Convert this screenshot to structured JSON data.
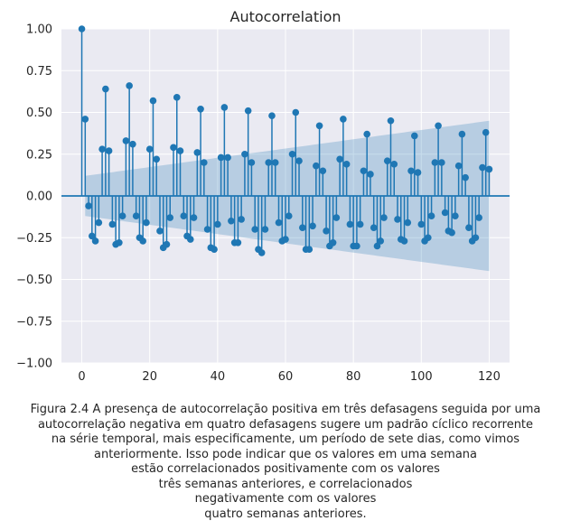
{
  "chart_data": {
    "type": "stem",
    "title": "Autocorrelation",
    "xlabel": "",
    "ylabel": "",
    "xlim": [
      -6,
      126
    ],
    "ylim": [
      -1.0,
      1.0
    ],
    "xticks": [
      0,
      20,
      40,
      60,
      80,
      100,
      120
    ],
    "yticks": [
      -1.0,
      -0.75,
      -0.5,
      -0.25,
      0.0,
      0.25,
      0.5,
      0.75,
      1.0
    ],
    "xtick_labels": [
      "0",
      "20",
      "40",
      "60",
      "80",
      "100",
      "120"
    ],
    "ytick_labels": [
      "−1.00",
      "−0.75",
      "−0.50",
      "−0.25",
      "0.00",
      "0.25",
      "0.50",
      "0.75",
      "1.00"
    ],
    "grid": true,
    "confidence_band": {
      "x": [
        1,
        120
      ],
      "upper": [
        0.12,
        0.45
      ],
      "lower": [
        -0.12,
        -0.45
      ]
    },
    "lags": [
      0,
      1,
      2,
      3,
      4,
      5,
      6,
      7,
      8,
      9,
      10,
      11,
      12,
      13,
      14,
      15,
      16,
      17,
      18,
      19,
      20,
      21,
      22,
      23,
      24,
      25,
      26,
      27,
      28,
      29,
      30,
      31,
      32,
      33,
      34,
      35,
      36,
      37,
      38,
      39,
      40,
      41,
      42,
      43,
      44,
      45,
      46,
      47,
      48,
      49,
      50,
      51,
      52,
      53,
      54,
      55,
      56,
      57,
      58,
      59,
      60,
      61,
      62,
      63,
      64,
      65,
      66,
      67,
      68,
      69,
      70,
      71,
      72,
      73,
      74,
      75,
      76,
      77,
      78,
      79,
      80,
      81,
      82,
      83,
      84,
      85,
      86,
      87,
      88,
      89,
      90,
      91,
      92,
      93,
      94,
      95,
      96,
      97,
      98,
      99,
      100,
      101,
      102,
      103,
      104,
      105,
      106,
      107,
      108,
      109,
      110,
      111,
      112,
      113,
      114,
      115,
      116,
      117,
      118,
      119,
      120
    ],
    "values": [
      1.0,
      0.46,
      -0.06,
      -0.24,
      -0.27,
      -0.16,
      0.28,
      0.64,
      0.27,
      -0.17,
      -0.29,
      -0.28,
      -0.12,
      0.33,
      0.66,
      0.31,
      -0.12,
      -0.25,
      -0.27,
      -0.16,
      0.28,
      0.57,
      0.22,
      -0.21,
      -0.31,
      -0.29,
      -0.13,
      0.29,
      0.59,
      0.27,
      -0.12,
      -0.24,
      -0.26,
      -0.13,
      0.26,
      0.52,
      0.2,
      -0.2,
      -0.31,
      -0.32,
      -0.17,
      0.23,
      0.53,
      0.23,
      -0.15,
      -0.28,
      -0.28,
      -0.14,
      0.25,
      0.51,
      0.2,
      -0.2,
      -0.32,
      -0.34,
      -0.2,
      0.2,
      0.48,
      0.2,
      -0.16,
      -0.27,
      -0.26,
      -0.12,
      0.25,
      0.5,
      0.21,
      -0.19,
      -0.32,
      -0.32,
      -0.18,
      0.18,
      0.42,
      0.15,
      -0.21,
      -0.3,
      -0.28,
      -0.13,
      0.22,
      0.46,
      0.19,
      -0.17,
      -0.3,
      -0.3,
      -0.17,
      0.15,
      0.37,
      0.13,
      -0.19,
      -0.3,
      -0.27,
      -0.13,
      0.21,
      0.45,
      0.19,
      -0.14,
      -0.26,
      -0.27,
      -0.16,
      0.15,
      0.36,
      0.14,
      -0.17,
      -0.27,
      -0.25,
      -0.12,
      0.2,
      0.42,
      0.2,
      -0.1,
      -0.21,
      -0.22,
      -0.12,
      0.18,
      0.37,
      0.11,
      -0.19,
      -0.27,
      -0.25,
      -0.13,
      0.17,
      0.38,
      0.16
    ]
  },
  "caption": "Figura 2.4  A presença de autocorrelação positiva em três defasagens seguida por uma\nautocorrelação negativa em quatro defasagens sugere um padrão cíclico recorrente\nna série temporal, mais especificamente, um período de sete dias, como vimos\nanteriormente. Isso pode indicar que os valores em uma semana\nestão correlacionados positivamente com os valores\ntrês semanas anteriores, e correlacionados\nnegativamente com os valores\nquatro semanas anteriores.",
  "colors": {
    "plot_bg": "#eaeaf2",
    "grid": "#ffffff",
    "stem": "#1f77b4",
    "band": "#1f77b4",
    "text": "#262626"
  }
}
